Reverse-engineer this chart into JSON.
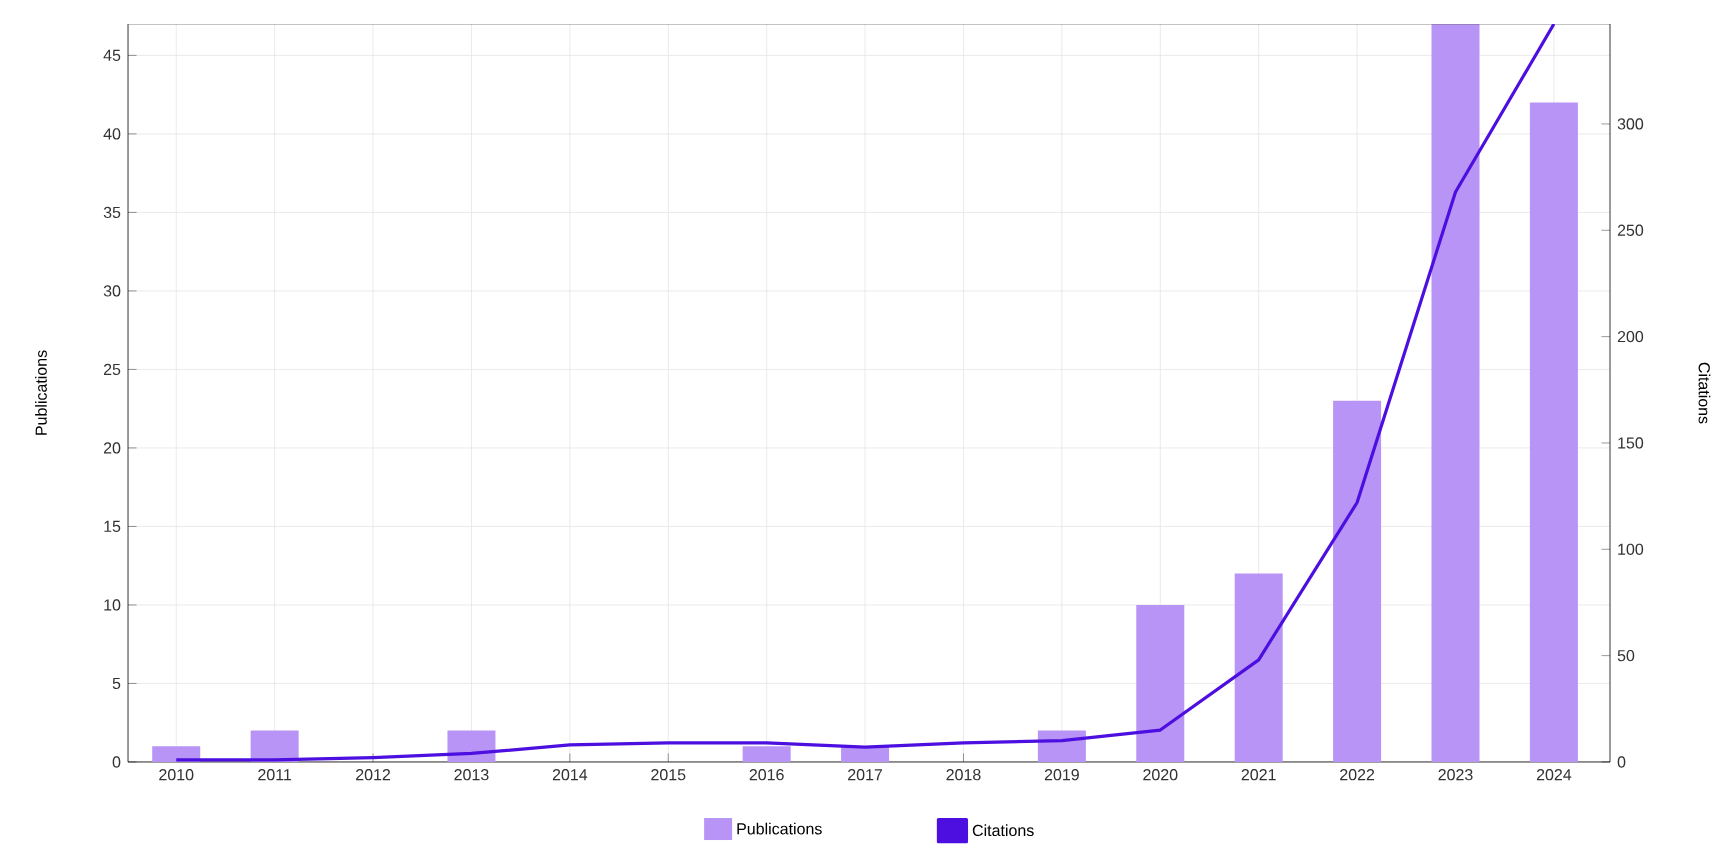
{
  "chart_data": {
    "type": "bar",
    "categories": [
      "2010",
      "2011",
      "2012",
      "2013",
      "2014",
      "2015",
      "2016",
      "2017",
      "2018",
      "2019",
      "2020",
      "2021",
      "2022",
      "2023",
      "2024"
    ],
    "series": [
      {
        "name": "Publications",
        "color": "#b794f6",
        "values": [
          1,
          2,
          0,
          2,
          0,
          0,
          1,
          1,
          0,
          2,
          10,
          12,
          23,
          47,
          42
        ]
      },
      {
        "name": "Citations",
        "type": "line",
        "axis": "y2",
        "color": "#4c0fe0",
        "values": [
          1,
          1,
          2,
          4,
          8,
          9,
          9,
          7,
          9,
          10,
          15,
          48,
          122,
          268,
          347
        ]
      }
    ],
    "ylabel": "Publications",
    "y2label": "Citations",
    "ylim": [
      0,
      47
    ],
    "yticks": [
      0,
      5,
      10,
      15,
      20,
      25,
      30,
      35,
      40,
      45
    ],
    "y2lim": [
      0,
      347
    ],
    "y2ticks": [
      0,
      50,
      100,
      150,
      200,
      250,
      300
    ],
    "grid": true,
    "legend": "bottom"
  }
}
